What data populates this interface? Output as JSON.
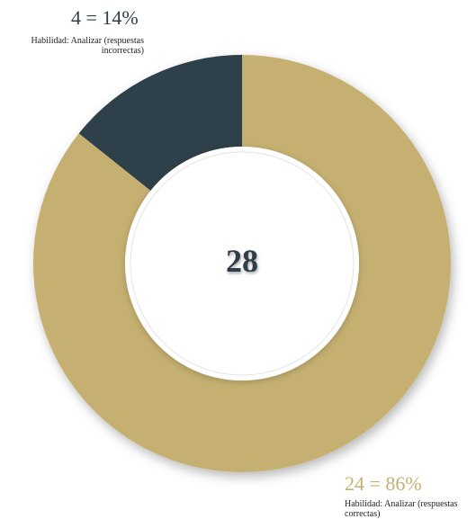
{
  "chart_data": {
    "type": "pie",
    "donut": true,
    "total": "28",
    "slices": [
      {
        "value": 4,
        "percent": 14,
        "value_label": "4 = 14%",
        "name": "Habilidad: Analizar (respuestas incorrectas)",
        "color": "#2f3f4a"
      },
      {
        "value": 24,
        "percent": 86,
        "value_label": "24 = 86%",
        "name": "Habilidad: Analizar (respuestas correctas)",
        "color": "#c5b071"
      }
    ],
    "legend": "none"
  },
  "colors": {
    "incorrect": "#2f3f4a",
    "correct": "#c5b071",
    "center_fill": "#ffffff"
  }
}
